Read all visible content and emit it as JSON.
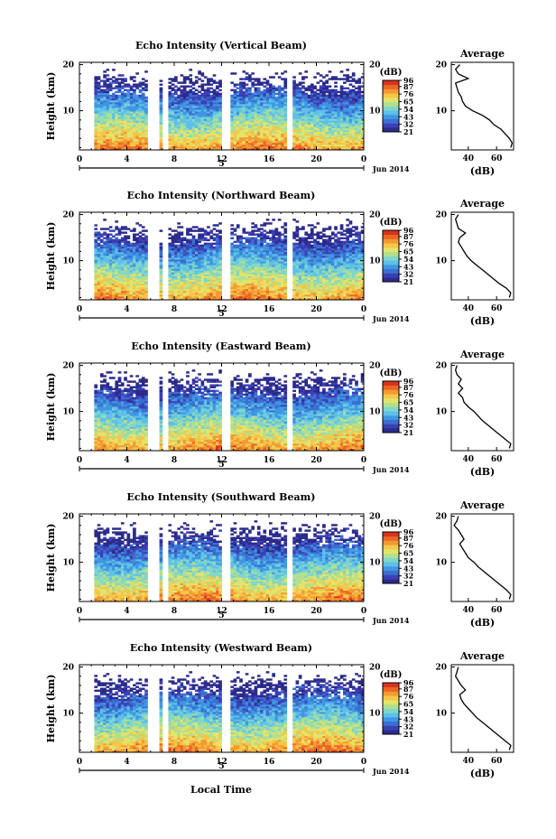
{
  "figure": {
    "x_title": "Local Time",
    "day_label": "5",
    "month_label": "Jun 2014",
    "y_title": "Height (km)",
    "cbar_title": "(dB)",
    "avg_title": "Average",
    "avg_xlabel": "(dB)",
    "colors": {
      "ramp": [
        "#2b2b8c",
        "#3d3fb5",
        "#3b6fd0",
        "#3f97e3",
        "#5ec0e8",
        "#80d6c8",
        "#b2e08e",
        "#e4e36a",
        "#f5c649",
        "#f39a33",
        "#ec6626",
        "#d9331e"
      ]
    }
  },
  "chart_data": [
    {
      "type": "heatmap",
      "title": "Echo Intensity (Vertical Beam)",
      "x_ticks": [
        "0",
        "4",
        "8",
        "12",
        "16",
        "20",
        "0"
      ],
      "xlim": [
        0,
        24
      ],
      "y_ticks": [
        "10",
        "20"
      ],
      "ylim": [
        1.5,
        20.5
      ],
      "colorbar": {
        "ticks": [
          "96",
          "87",
          "76",
          "65",
          "54",
          "43",
          "32",
          "21"
        ],
        "range": [
          21,
          96
        ]
      },
      "data_gaps_hours": [
        [
          0,
          1.2
        ],
        [
          5.6,
          6.6
        ],
        [
          6.9,
          7.4
        ],
        [
          11.8,
          12.6
        ],
        [
          17.5,
          17.9
        ]
      ],
      "average_profile": {
        "xlabel": "(dB)",
        "x_ticks": [
          "40",
          "60"
        ],
        "xlim": [
          28,
          72
        ],
        "y_ticks": [
          "10",
          "20"
        ],
        "ylim": [
          1.5,
          20.5
        ],
        "points": [
          [
            70,
            2
          ],
          [
            71,
            3
          ],
          [
            69,
            4
          ],
          [
            66,
            5
          ],
          [
            63,
            6
          ],
          [
            58,
            7
          ],
          [
            55,
            8
          ],
          [
            50,
            9
          ],
          [
            43,
            10
          ],
          [
            38,
            11
          ],
          [
            36,
            12
          ],
          [
            35,
            13
          ],
          [
            33,
            14
          ],
          [
            32,
            15
          ],
          [
            31,
            16
          ],
          [
            40,
            17
          ],
          [
            33,
            18
          ],
          [
            31,
            19
          ],
          [
            34,
            20
          ]
        ]
      }
    },
    {
      "type": "heatmap",
      "title": "Echo Intensity (Northward Beam)",
      "x_ticks": [
        "0",
        "4",
        "8",
        "12",
        "16",
        "20",
        "0"
      ],
      "xlim": [
        0,
        24
      ],
      "y_ticks": [
        "10",
        "20"
      ],
      "ylim": [
        1.5,
        20.5
      ],
      "colorbar": {
        "ticks": [
          "96",
          "87",
          "76",
          "65",
          "54",
          "43",
          "32",
          "21"
        ],
        "range": [
          21,
          96
        ]
      },
      "data_gaps_hours": [
        [
          0,
          1.2
        ],
        [
          5.6,
          6.6
        ],
        [
          6.9,
          7.4
        ],
        [
          11.8,
          12.6
        ],
        [
          17.5,
          17.9
        ]
      ],
      "average_profile": {
        "xlabel": "(dB)",
        "x_ticks": [
          "40",
          "60"
        ],
        "xlim": [
          28,
          72
        ],
        "y_ticks": [
          "10",
          "20"
        ],
        "ylim": [
          1.5,
          20.5
        ],
        "points": [
          [
            69,
            2
          ],
          [
            70,
            3
          ],
          [
            67,
            4
          ],
          [
            62,
            5
          ],
          [
            58,
            6
          ],
          [
            54,
            7
          ],
          [
            50,
            8
          ],
          [
            46,
            9
          ],
          [
            42,
            10
          ],
          [
            39,
            11
          ],
          [
            37,
            12
          ],
          [
            35,
            13
          ],
          [
            33,
            14
          ],
          [
            34,
            15
          ],
          [
            38,
            16
          ],
          [
            33,
            17
          ],
          [
            32,
            18
          ],
          [
            31,
            19
          ],
          [
            33,
            20
          ]
        ]
      }
    },
    {
      "type": "heatmap",
      "title": "Echo Intensity (Eastward Beam)",
      "x_ticks": [
        "0",
        "4",
        "8",
        "12",
        "16",
        "20",
        "0"
      ],
      "xlim": [
        0,
        24
      ],
      "y_ticks": [
        "10",
        "20"
      ],
      "ylim": [
        1.5,
        20.5
      ],
      "colorbar": {
        "ticks": [
          "96",
          "87",
          "76",
          "65",
          "54",
          "43",
          "32",
          "21"
        ],
        "range": [
          21,
          96
        ]
      },
      "data_gaps_hours": [
        [
          0,
          1.2
        ],
        [
          5.6,
          6.6
        ],
        [
          6.9,
          7.4
        ],
        [
          11.8,
          12.6
        ],
        [
          17.5,
          17.9
        ]
      ],
      "average_profile": {
        "xlabel": "(dB)",
        "x_ticks": [
          "40",
          "60"
        ],
        "xlim": [
          28,
          72
        ],
        "y_ticks": [
          "10",
          "20"
        ],
        "ylim": [
          1.5,
          20.5
        ],
        "points": [
          [
            69,
            2
          ],
          [
            70,
            3
          ],
          [
            66,
            4
          ],
          [
            62,
            5
          ],
          [
            58,
            6
          ],
          [
            54,
            7
          ],
          [
            50,
            8
          ],
          [
            47,
            9
          ],
          [
            44,
            10
          ],
          [
            40,
            11
          ],
          [
            37,
            12
          ],
          [
            36,
            13
          ],
          [
            33,
            14
          ],
          [
            36,
            15
          ],
          [
            33,
            16
          ],
          [
            35,
            17
          ],
          [
            32,
            18
          ],
          [
            31,
            19
          ],
          [
            32,
            20
          ]
        ]
      }
    },
    {
      "type": "heatmap",
      "title": "Echo Intensity (Southward Beam)",
      "x_ticks": [
        "0",
        "4",
        "8",
        "12",
        "16",
        "20",
        "0"
      ],
      "xlim": [
        0,
        24
      ],
      "y_ticks": [
        "10",
        "20"
      ],
      "ylim": [
        1.5,
        20.5
      ],
      "colorbar": {
        "ticks": [
          "96",
          "87",
          "76",
          "65",
          "54",
          "43",
          "32",
          "21"
        ],
        "range": [
          21,
          96
        ]
      },
      "data_gaps_hours": [
        [
          0,
          1.2
        ],
        [
          5.6,
          6.6
        ],
        [
          6.9,
          7.4
        ],
        [
          11.8,
          12.6
        ],
        [
          17.5,
          17.9
        ]
      ],
      "average_profile": {
        "xlabel": "(dB)",
        "x_ticks": [
          "40",
          "60"
        ],
        "xlim": [
          28,
          72
        ],
        "y_ticks": [
          "10",
          "20"
        ],
        "ylim": [
          1.5,
          20.5
        ],
        "points": [
          [
            69,
            2
          ],
          [
            70,
            3
          ],
          [
            67,
            4
          ],
          [
            63,
            5
          ],
          [
            59,
            6
          ],
          [
            55,
            7
          ],
          [
            51,
            8
          ],
          [
            47,
            9
          ],
          [
            44,
            10
          ],
          [
            40,
            11
          ],
          [
            38,
            12
          ],
          [
            36,
            13
          ],
          [
            34,
            14
          ],
          [
            37,
            15
          ],
          [
            35,
            16
          ],
          [
            33,
            17
          ],
          [
            30,
            18
          ],
          [
            32,
            19
          ],
          [
            33,
            20
          ]
        ]
      }
    },
    {
      "type": "heatmap",
      "title": "Echo Intensity (Westward Beam)",
      "x_ticks": [
        "0",
        "4",
        "8",
        "12",
        "16",
        "20",
        "0"
      ],
      "xlim": [
        0,
        24
      ],
      "y_ticks": [
        "10",
        "20"
      ],
      "ylim": [
        1.5,
        20.5
      ],
      "colorbar": {
        "ticks": [
          "96",
          "87",
          "76",
          "65",
          "54",
          "43",
          "32",
          "21"
        ],
        "range": [
          21,
          96
        ]
      },
      "data_gaps_hours": [
        [
          0,
          1.2
        ],
        [
          5.6,
          6.6
        ],
        [
          6.9,
          7.4
        ],
        [
          11.8,
          12.6
        ],
        [
          17.5,
          17.9
        ]
      ],
      "average_profile": {
        "xlabel": "(dB)",
        "x_ticks": [
          "40",
          "60"
        ],
        "xlim": [
          28,
          72
        ],
        "y_ticks": [
          "10",
          "20"
        ],
        "ylim": [
          1.5,
          20.5
        ],
        "points": [
          [
            69,
            2
          ],
          [
            70,
            3
          ],
          [
            66,
            4
          ],
          [
            62,
            5
          ],
          [
            58,
            6
          ],
          [
            54,
            7
          ],
          [
            50,
            8
          ],
          [
            46,
            9
          ],
          [
            43,
            10
          ],
          [
            40,
            11
          ],
          [
            37,
            12
          ],
          [
            35,
            13
          ],
          [
            34,
            14
          ],
          [
            38,
            15
          ],
          [
            35,
            16
          ],
          [
            33,
            17
          ],
          [
            31,
            18
          ],
          [
            32,
            19
          ],
          [
            33,
            20
          ]
        ]
      }
    }
  ]
}
